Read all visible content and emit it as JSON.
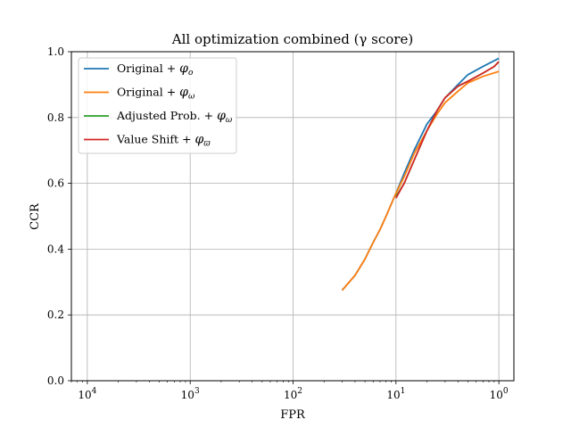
{
  "chart_data": {
    "type": "line",
    "title": "All optimization combined (γ score)",
    "xlabel": "FPR",
    "ylabel": "CCR",
    "xscale": "log",
    "xlim": [
      7e-05,
      1.4
    ],
    "ylim": [
      0.0,
      1.0
    ],
    "grid": true,
    "legend_position": "top-left",
    "x_ticks": [
      {
        "value": 0.0001,
        "base": "10",
        "exp": "4"
      },
      {
        "value": 0.001,
        "base": "10",
        "exp": "3"
      },
      {
        "value": 0.01,
        "base": "10",
        "exp": "2"
      },
      {
        "value": 0.1,
        "base": "10",
        "exp": "1"
      },
      {
        "value": 1,
        "base": "10",
        "exp": "0"
      }
    ],
    "y_ticks": [
      "0.0",
      "0.2",
      "0.4",
      "0.6",
      "0.8",
      "1.0"
    ],
    "series": [
      {
        "name": "Original + φo",
        "legend_base": "Original + ",
        "legend_symbol": "φ",
        "legend_sub": "o",
        "color": "#1f77b4",
        "points": [
          [
            0.03,
            0.275
          ],
          [
            0.04,
            0.32
          ],
          [
            0.05,
            0.37
          ],
          [
            0.06,
            0.42
          ],
          [
            0.07,
            0.46
          ],
          [
            0.08,
            0.5
          ],
          [
            0.1,
            0.57
          ],
          [
            0.12,
            0.63
          ],
          [
            0.15,
            0.7
          ],
          [
            0.2,
            0.78
          ],
          [
            0.25,
            0.82
          ],
          [
            0.3,
            0.86
          ],
          [
            0.4,
            0.9
          ],
          [
            0.5,
            0.93
          ],
          [
            0.7,
            0.955
          ],
          [
            1.0,
            0.98
          ]
        ]
      },
      {
        "name": "Original + φω",
        "legend_base": "Original + ",
        "legend_symbol": "φ",
        "legend_sub": "ω",
        "color": "#ff7f0e",
        "points": [
          [
            0.03,
            0.275
          ],
          [
            0.04,
            0.32
          ],
          [
            0.05,
            0.37
          ],
          [
            0.06,
            0.42
          ],
          [
            0.07,
            0.46
          ],
          [
            0.08,
            0.5
          ],
          [
            0.1,
            0.57
          ],
          [
            0.12,
            0.62
          ],
          [
            0.15,
            0.69
          ],
          [
            0.2,
            0.76
          ],
          [
            0.25,
            0.81
          ],
          [
            0.3,
            0.845
          ],
          [
            0.4,
            0.88
          ],
          [
            0.5,
            0.905
          ],
          [
            0.7,
            0.925
          ],
          [
            1.0,
            0.94
          ]
        ]
      },
      {
        "name": "Adjusted Prob. + φω",
        "legend_base": "Adjusted Prob. + ",
        "legend_symbol": "φ",
        "legend_sub": "ω",
        "color": "#2ca02c",
        "points": [
          [
            0.1,
            0.56
          ],
          [
            0.12,
            0.6
          ],
          [
            0.15,
            0.67
          ],
          [
            0.2,
            0.76
          ],
          [
            0.25,
            0.82
          ],
          [
            0.3,
            0.86
          ],
          [
            0.4,
            0.895
          ],
          [
            0.5,
            0.91
          ],
          [
            0.7,
            0.935
          ],
          [
            0.9,
            0.955
          ],
          [
            1.0,
            0.97
          ]
        ]
      },
      {
        "name": "Value Shift + φϖ",
        "legend_base": "Value Shift + ",
        "legend_symbol": "φ",
        "legend_sub": "ϖ",
        "color": "#d62728",
        "points": [
          [
            0.1,
            0.555
          ],
          [
            0.12,
            0.6
          ],
          [
            0.15,
            0.67
          ],
          [
            0.2,
            0.76
          ],
          [
            0.25,
            0.82
          ],
          [
            0.3,
            0.86
          ],
          [
            0.4,
            0.895
          ],
          [
            0.5,
            0.91
          ],
          [
            0.7,
            0.935
          ],
          [
            0.9,
            0.955
          ],
          [
            1.0,
            0.97
          ]
        ]
      }
    ]
  }
}
